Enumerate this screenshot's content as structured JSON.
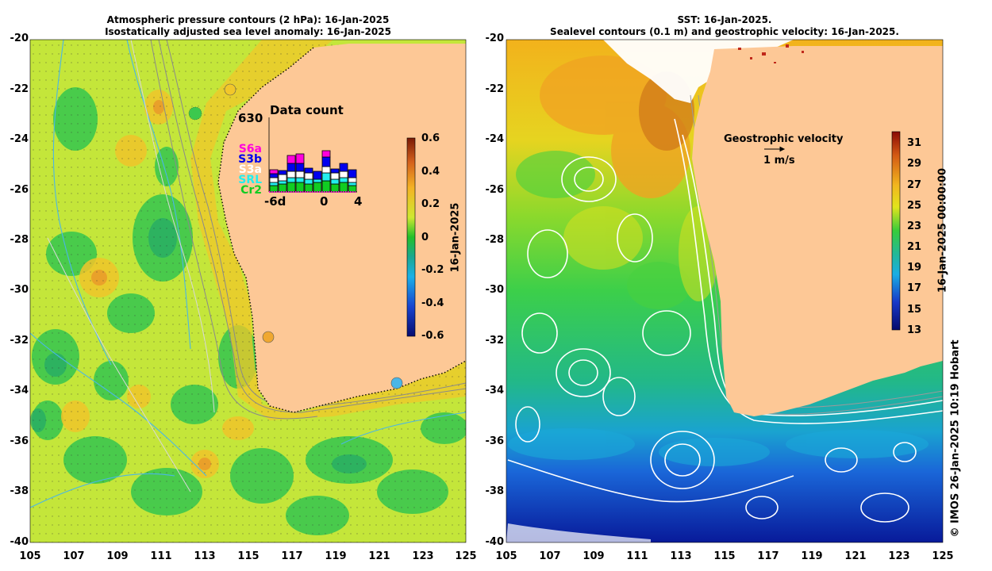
{
  "left_panel": {
    "title_line1": "Atmospheric pressure contours (2 hPa): 16-Jan-2025",
    "title_line2": "Isostatically adjusted sea level anomaly: 16-Jan-2025",
    "colorbar_label": "16-Jan-2025",
    "colorbar_ticks": [
      "0.6",
      "0.4",
      "0.2",
      "0",
      "-0.2",
      "-0.4",
      "-0.6"
    ],
    "colors": {
      "land": "#fdc896",
      "sea_base": "#c8e83c"
    }
  },
  "right_panel": {
    "title_line1": "SST: 16-Jan-2025.",
    "title_line2": "Sealevel contours (0.1 m) and geostrophic velocity: 16-Jan-2025.",
    "velocity_label": "Geostrophic velocity",
    "velocity_scale": "1 m/s",
    "colorbar_label": "16-Jan-2025 00:00:00",
    "colorbar_ticks": [
      "31",
      "29",
      "27",
      "25",
      "23",
      "21",
      "19",
      "17",
      "15",
      "13"
    ],
    "colors": {
      "land": "#fdc896"
    }
  },
  "axes": {
    "y_ticks": [
      "-20",
      "-22",
      "-24",
      "-26",
      "-28",
      "-30",
      "-32",
      "-34",
      "-36",
      "-38",
      "-40"
    ],
    "x_ticks": [
      "105",
      "107",
      "109",
      "111",
      "113",
      "115",
      "117",
      "119",
      "121",
      "123",
      "125"
    ]
  },
  "data_count": {
    "title": "Data count",
    "max_label": "630",
    "x_labels": [
      "-6d",
      "0",
      "4"
    ],
    "satellites": [
      {
        "name": "S6a",
        "color": "#ff00dd"
      },
      {
        "name": "S3b",
        "color": "#0000ee"
      },
      {
        "name": "S3a",
        "color": "#ffffff"
      },
      {
        "name": "SRL",
        "color": "#22eeee"
      },
      {
        "name": "Cr2",
        "color": "#11cc22"
      }
    ]
  },
  "credit": "© IMOS 26-Jan-2025 10:19 Hobart"
}
